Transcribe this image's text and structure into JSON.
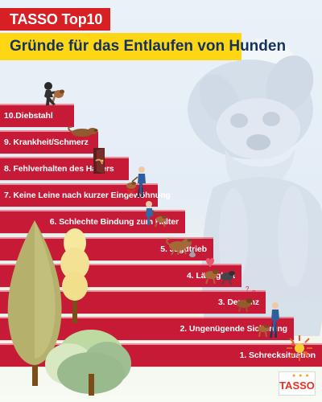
{
  "header": {
    "top_label": "TASSO Top10",
    "title": "Gründe für das Entlaufen von Hunden"
  },
  "steps": [
    {
      "label": "10.Diebstahl"
    },
    {
      "label": "9. Krankheit/Schmerz"
    },
    {
      "label": "8. Fehlverhalten des Halters"
    },
    {
      "label": "7. Keine Leine nach kurzer Eingewöhnung"
    },
    {
      "label": "6. Schlechte Bindung zum Halter"
    },
    {
      "label": "5. Jagdtrieb"
    },
    {
      "label": "4. Läufigkeit"
    },
    {
      "label": "3. Demenz"
    },
    {
      "label": "2. Ungenügende Sicherung"
    },
    {
      "label": "1. Schrecksituation"
    }
  ],
  "badge": {
    "brand": "TASSO"
  },
  "icons": {
    "background_dog": "dog-silhouette-icon",
    "thief": "thief-with-dog-icon",
    "sick_dog": "sick-dog-icon",
    "door": "open-door-icon",
    "leash": "dog-leash-icon",
    "owner": "owner-with-dog-icon",
    "hunt": "hunting-dog-icon",
    "rabbit": "rabbit-icon",
    "heat": "dogs-heart-icon",
    "dementia": "confused-dog-icon",
    "security": "owner-and-dog-icon",
    "fireworks": "fireworks-icon"
  },
  "colors": {
    "header_red": "#d71f24",
    "title_yellow": "#ffd614",
    "step_red": "#c61a36",
    "title_navy": "#13325f",
    "background_blue": "#e9f0f7"
  }
}
